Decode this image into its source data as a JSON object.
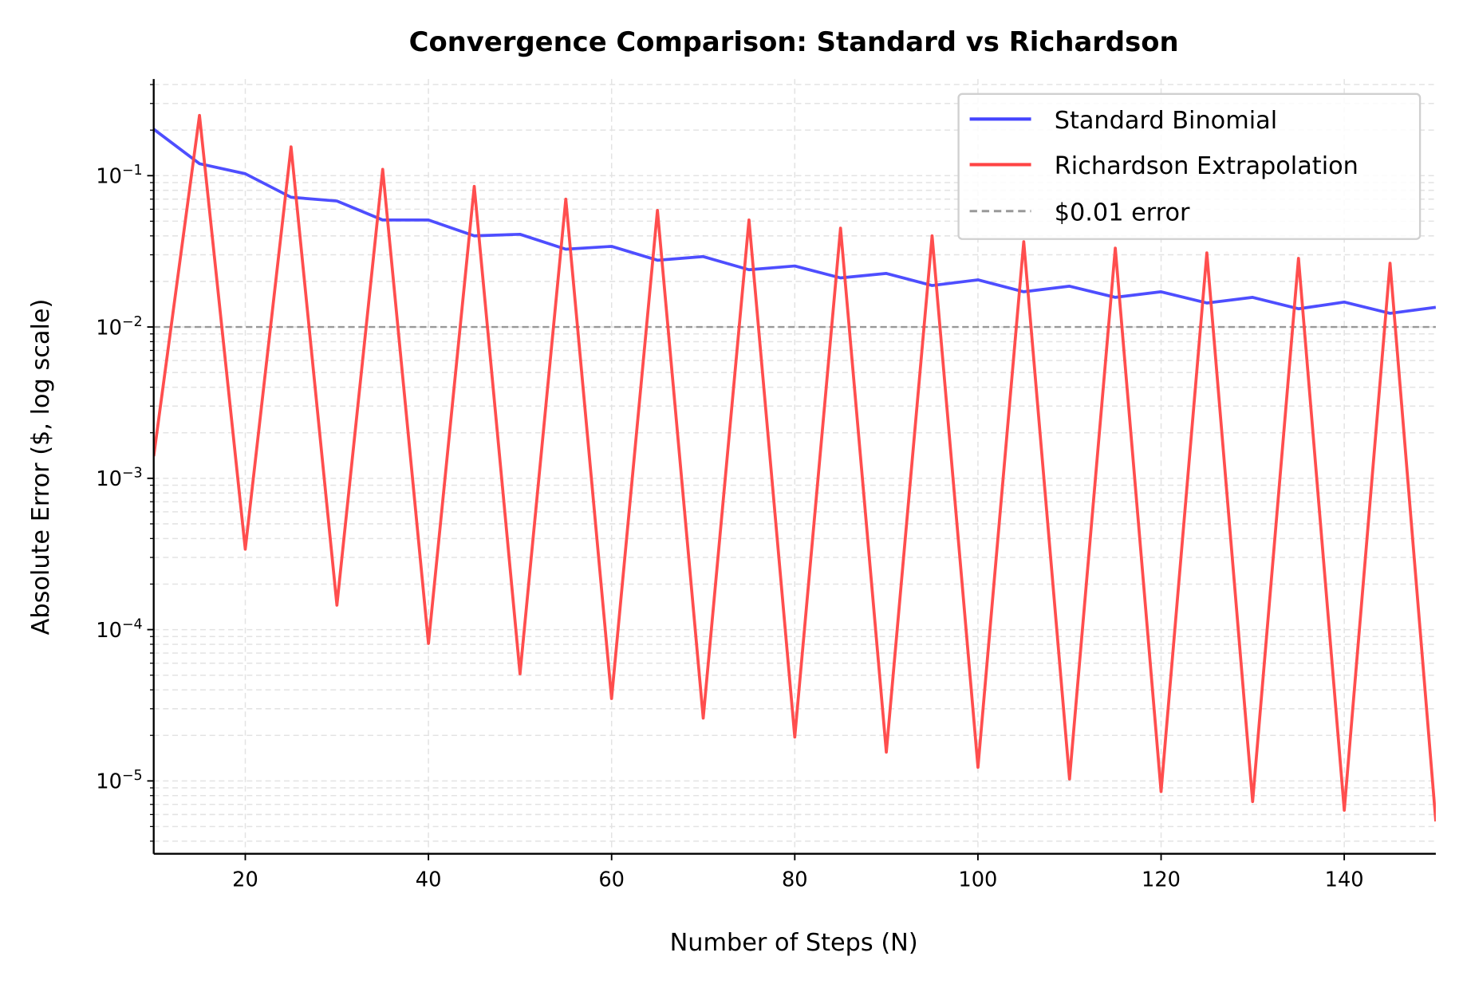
{
  "chart_data": {
    "type": "line",
    "title": "Convergence Comparison: Standard vs Richardson",
    "xlabel": "Number of Steps (N)",
    "ylabel": "Absolute Error ($, log scale)",
    "xlim": [
      10,
      150
    ],
    "ylim": [
      3.3e-06,
      0.435
    ],
    "yscale": "log",
    "grid": true,
    "legend_placement": "top-right",
    "x_ticks": [
      20,
      40,
      60,
      80,
      100,
      120,
      140
    ],
    "y_ticks": [
      {
        "exp": -1,
        "label": "10",
        "sup": "−1"
      },
      {
        "exp": -2,
        "label": "10",
        "sup": "−2"
      },
      {
        "exp": -3,
        "label": "10",
        "sup": "−3"
      },
      {
        "exp": -4,
        "label": "10",
        "sup": "−4"
      },
      {
        "exp": -5,
        "label": "10",
        "sup": "−5"
      }
    ],
    "x": [
      10,
      15,
      20,
      25,
      30,
      35,
      40,
      45,
      50,
      55,
      60,
      65,
      70,
      75,
      80,
      85,
      90,
      95,
      100,
      105,
      110,
      115,
      120,
      125,
      130,
      135,
      140,
      145,
      150
    ],
    "series": [
      {
        "name": "Standard Binomial",
        "color": "#4444ff",
        "values": [
          0.203,
          0.12,
          0.103,
          0.072,
          0.068,
          0.051,
          0.051,
          0.04,
          0.041,
          0.0327,
          0.0341,
          0.0276,
          0.0292,
          0.0239,
          0.0253,
          0.0211,
          0.0226,
          0.0188,
          0.0205,
          0.0171,
          0.0186,
          0.0157,
          0.0171,
          0.0144,
          0.0157,
          0.0132,
          0.0146,
          0.0123,
          0.0135
        ]
      },
      {
        "name": "Richardson Extrapolation",
        "color": "#ff4444",
        "values": [
          0.0014,
          0.25,
          0.00034,
          0.155,
          0.000145,
          0.11,
          8.1e-05,
          0.085,
          5.1e-05,
          0.07,
          3.5e-05,
          0.059,
          2.6e-05,
          0.051,
          1.95e-05,
          0.045,
          1.55e-05,
          0.04,
          1.23e-05,
          0.0366,
          1.03e-05,
          0.0332,
          8.5e-06,
          0.0309,
          7.3e-06,
          0.0284,
          6.4e-06,
          0.0264,
          5.4e-06
        ]
      }
    ],
    "reference_line": {
      "name": "$0.01 error",
      "y": 0.01,
      "color": "#999999",
      "style": "dashed"
    }
  }
}
